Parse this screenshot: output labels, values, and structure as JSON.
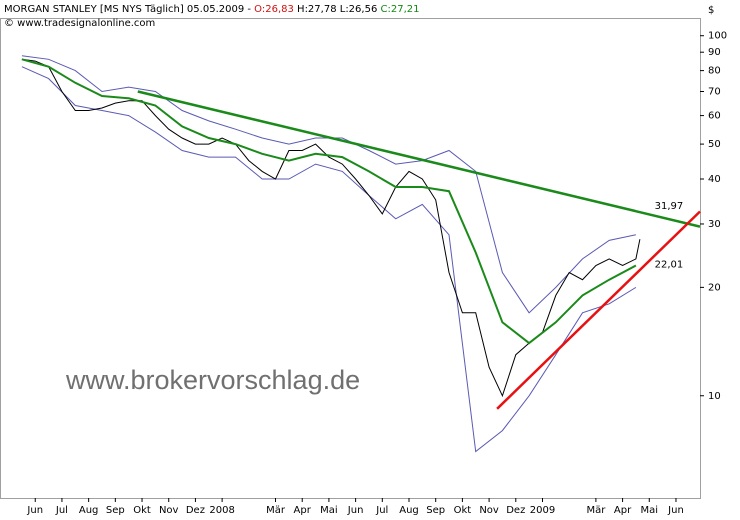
{
  "chart_data": {
    "type": "line",
    "title": "MORGAN STANLEY [MS NYS  Täglich] 05.05.2009 - ",
    "quote_open": "O:26,83",
    "quote_high_low": "H:27,78 L:26,56",
    "quote_close": "C:27,21",
    "source": "© www.tradesignalonline.com",
    "watermark": "www.brokervorschlag.de",
    "currency": "$",
    "log_scale": true,
    "xlim": [
      -0.82,
      25.4
    ],
    "ylim": [
      5.2,
      112
    ],
    "yticks": [
      10,
      20,
      30,
      40,
      50,
      60,
      70,
      80,
      90,
      100
    ],
    "xticks": [
      {
        "value": 0.5,
        "label": "Jun"
      },
      {
        "value": 1.5,
        "label": "Jul"
      },
      {
        "value": 2.5,
        "label": "Aug"
      },
      {
        "value": 3.5,
        "label": "Sep"
      },
      {
        "value": 4.5,
        "label": "Okt"
      },
      {
        "value": 5.5,
        "label": "Nov"
      },
      {
        "value": 6.5,
        "label": "Dez"
      },
      {
        "value": 7.5,
        "label": "2008"
      },
      {
        "value": 9.5,
        "label": "Mär"
      },
      {
        "value": 10.5,
        "label": "Apr"
      },
      {
        "value": 11.5,
        "label": "Mai"
      },
      {
        "value": 12.5,
        "label": "Jun"
      },
      {
        "value": 13.5,
        "label": "Jul"
      },
      {
        "value": 14.5,
        "label": "Aug"
      },
      {
        "value": 15.5,
        "label": "Sep"
      },
      {
        "value": 16.5,
        "label": "Okt"
      },
      {
        "value": 17.5,
        "label": "Nov"
      },
      {
        "value": 18.5,
        "label": "Dez"
      },
      {
        "value": 19.5,
        "label": "2009"
      },
      {
        "value": 21.5,
        "label": "Mär"
      },
      {
        "value": 22.5,
        "label": "Apr"
      },
      {
        "value": 23.5,
        "label": "Mai"
      },
      {
        "value": 24.5,
        "label": "Jun"
      }
    ],
    "series": [
      {
        "color": "#5a5ab4",
        "x": [
          0,
          1,
          2,
          3,
          4,
          5,
          6,
          7,
          8,
          9,
          10,
          11,
          12,
          13,
          14,
          15,
          16,
          17,
          18,
          19,
          20,
          21,
          22,
          23
        ],
        "values": [
          88,
          86,
          80,
          70,
          72,
          70,
          62,
          58,
          55,
          52,
          50,
          52,
          52,
          48,
          44,
          45,
          48,
          42,
          22,
          17,
          20,
          24,
          27,
          28
        ]
      },
      {
        "color": "#5a5ab4",
        "x": [
          0,
          1,
          2,
          3,
          4,
          5,
          6,
          7,
          8,
          9,
          10,
          11,
          12,
          13,
          14,
          15,
          16,
          17,
          18,
          19,
          20,
          21,
          22,
          23
        ],
        "values": [
          82,
          76,
          64,
          62,
          60,
          54,
          48,
          46,
          46,
          40,
          40,
          44,
          42,
          36,
          31,
          34,
          28,
          7,
          8,
          10,
          13,
          17,
          18,
          20
        ]
      },
      {
        "color": "#000000",
        "x": [
          0,
          0.5,
          1,
          1.5,
          2,
          2.5,
          3,
          3.5,
          4,
          4.5,
          5,
          5.5,
          6,
          6.5,
          7,
          7.5,
          8,
          8.5,
          9,
          9.5,
          10,
          10.5,
          11,
          11.5,
          12,
          12.5,
          13,
          13.5,
          14,
          14.5,
          15,
          15.5,
          16,
          16.5,
          17,
          17.5,
          18,
          18.5,
          19,
          19.5,
          20,
          20.5,
          21,
          21.5,
          22,
          22.5,
          23,
          23.15
        ],
        "values": [
          86,
          85,
          82,
          70,
          62,
          62,
          63,
          65,
          66,
          66,
          60,
          55,
          52,
          50,
          50,
          52,
          50,
          45,
          42,
          40,
          48,
          48,
          50,
          46,
          44,
          40,
          36,
          32,
          38,
          42,
          40,
          35,
          22,
          17,
          17,
          12,
          10,
          13,
          14,
          15,
          19,
          22,
          21,
          23,
          24,
          23,
          24,
          27.21
        ]
      },
      {
        "color": "#1a8a1a",
        "x": [
          0,
          1,
          2,
          3,
          4,
          5,
          6,
          7,
          8,
          9,
          10,
          11,
          12,
          13,
          14,
          15,
          16,
          17,
          18,
          19,
          20,
          21,
          22,
          23
        ],
        "values": [
          86,
          82,
          74,
          68,
          67,
          64,
          56,
          52,
          50,
          47,
          45,
          47,
          46,
          42,
          38,
          38,
          37,
          25,
          16,
          14,
          16,
          19,
          21,
          23
        ]
      },
      {
        "color": "#1a8a1a",
        "x": [
          4.34,
          25.4
        ],
        "values": [
          70,
          29.5
        ]
      },
      {
        "color": "#e81010",
        "x": [
          17.8,
          25.4
        ],
        "values": [
          9.2,
          32.5
        ]
      }
    ],
    "annotations": [
      {
        "text": "31,97",
        "x": 23.1,
        "y": 31.97,
        "color": "#1a8a1a"
      },
      {
        "text": "22,01",
        "x": 23.1,
        "y": 22.01,
        "color": "#e81010"
      }
    ]
  }
}
